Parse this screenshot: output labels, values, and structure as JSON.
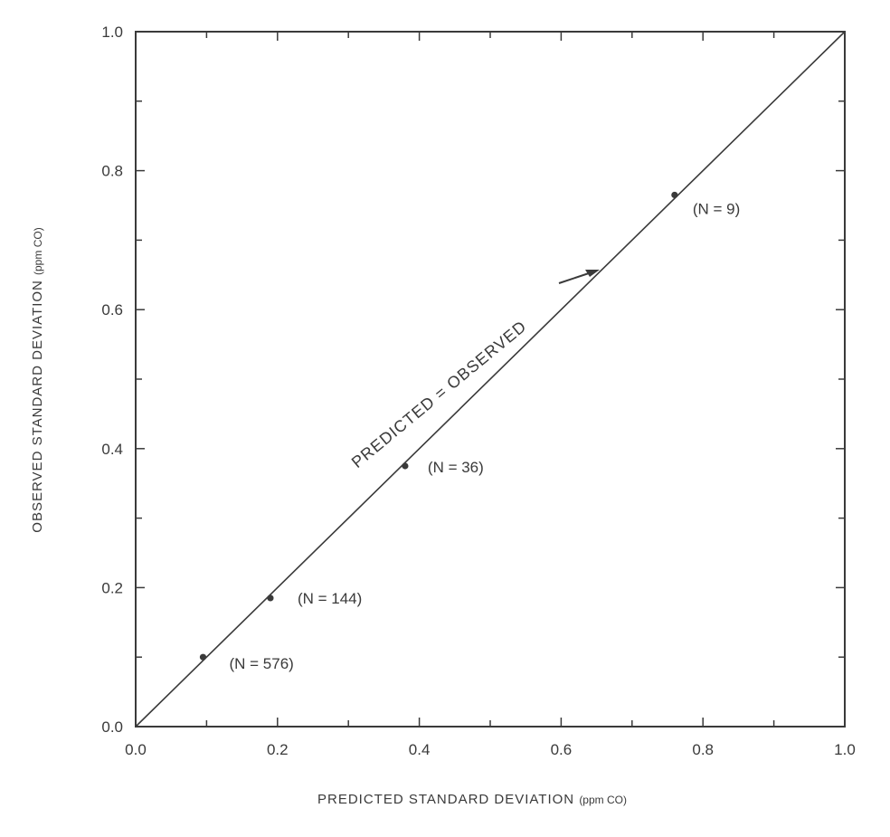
{
  "chart_data": {
    "type": "scatter",
    "title": "",
    "xlabel": "PREDICTED  STANDARD  DEVIATION",
    "xlabel_unit": "(ppm CO)",
    "ylabel": "OBSERVED  STANDARD  DEVIATION",
    "ylabel_unit": "(ppm CO)",
    "xlim": [
      0.0,
      1.0
    ],
    "ylim": [
      0.0,
      1.0
    ],
    "x_ticks": [
      "0.0",
      "0.2",
      "0.4",
      "0.6",
      "0.8",
      "1.0"
    ],
    "y_ticks": [
      "0.0",
      "0.2",
      "0.4",
      "0.6",
      "0.8",
      "1.0"
    ],
    "minor_tick_step": 0.1,
    "grid": false,
    "legend": "none",
    "series": [
      {
        "points": [
          {
            "x": 0.095,
            "y": 0.1,
            "label": "(N  =  576)"
          },
          {
            "x": 0.19,
            "y": 0.185,
            "label": "(N  =  144)"
          },
          {
            "x": 0.38,
            "y": 0.375,
            "label": "(N  =  36)"
          },
          {
            "x": 0.76,
            "y": 0.765,
            "label": "(N  =  9)"
          }
        ]
      }
    ],
    "reference_line": {
      "from": [
        0.0,
        0.0
      ],
      "to": [
        1.0,
        1.0
      ],
      "label": "PREDICTED = OBSERVED"
    },
    "colors": {
      "ink": "#3a3a3a",
      "background": "#ffffff"
    }
  }
}
